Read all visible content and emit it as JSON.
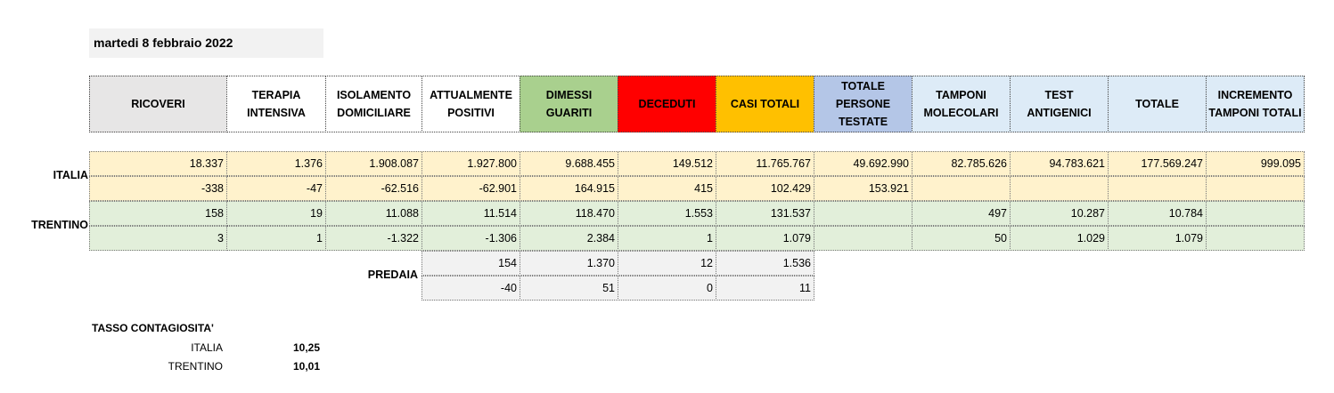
{
  "date": "martedi 8 febbraio 2022",
  "headers": [
    {
      "label": "RICOVERI",
      "color": "#e7e6e6"
    },
    {
      "label": "TERAPIA INTENSIVA",
      "color": "#ffffff"
    },
    {
      "label": "ISOLAMENTO DOMICILIARE",
      "color": "#ffffff"
    },
    {
      "label": "ATTUALMENTE POSITIVI",
      "color": "#ffffff"
    },
    {
      "label": "DIMESSI GUARITI",
      "color": "#a9d08e"
    },
    {
      "label": "DECEDUTI",
      "color": "#ff0000"
    },
    {
      "label": "CASI TOTALI",
      "color": "#ffc000"
    },
    {
      "label": "TOTALE PERSONE TESTATE",
      "color": "#b4c6e7"
    },
    {
      "label": "TAMPONI MOLECOLARI",
      "color": "#ddebf7"
    },
    {
      "label": "TEST ANTIGENICI",
      "color": "#ddebf7"
    },
    {
      "label": "TOTALE",
      "color": "#ddebf7"
    },
    {
      "label": "INCREMENTO TAMPONI TOTALI",
      "color": "#ddebf7"
    }
  ],
  "italia": {
    "label": "ITALIA",
    "color": "#fff2cc",
    "totals": [
      "18.337",
      "1.376",
      "1.908.087",
      "1.927.800",
      "9.688.455",
      "149.512",
      "11.765.767",
      "49.692.990",
      "82.785.626",
      "94.783.621",
      "177.569.247",
      "999.095"
    ],
    "deltas": [
      "-338",
      "-47",
      "-62.516",
      "-62.901",
      "164.915",
      "415",
      "102.429",
      "153.921",
      "",
      "",
      "",
      ""
    ]
  },
  "trentino": {
    "label": "TRENTINO",
    "color": "#e2efda",
    "totals": [
      "158",
      "19",
      "11.088",
      "11.514",
      "118.470",
      "1.553",
      "131.537",
      "",
      "497",
      "10.287",
      "10.784",
      ""
    ],
    "deltas": [
      "3",
      "1",
      "-1.322",
      "-1.306",
      "2.384",
      "1",
      "1.079",
      "",
      "50",
      "1.029",
      "1.079",
      ""
    ]
  },
  "predaia": {
    "label": "PREDAIA",
    "color": "#f2f2f2",
    "totals": [
      "154",
      "1.370",
      "12",
      "1.536"
    ],
    "deltas": [
      "-40",
      "51",
      "0",
      "11"
    ]
  },
  "tasso": {
    "title": "TASSO CONTAGIOSITA'",
    "rows": [
      {
        "label": "ITALIA",
        "value": "10,25"
      },
      {
        "label": "TRENTINO",
        "value": "10,01"
      }
    ]
  }
}
